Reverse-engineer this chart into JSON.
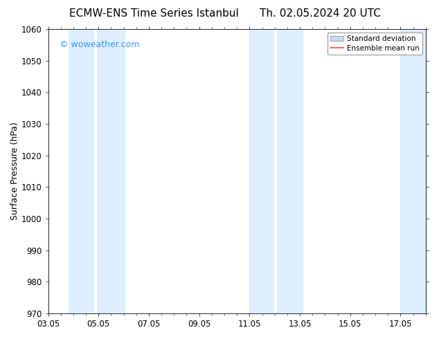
{
  "title_left": "ECMW-ENS Time Series Istanbul",
  "title_right": "Th. 02.05.2024 20 UTC",
  "ylabel": "Surface Pressure (hPa)",
  "ylim": [
    970,
    1060
  ],
  "yticks": [
    970,
    980,
    990,
    1000,
    1010,
    1020,
    1030,
    1040,
    1050,
    1060
  ],
  "xtick_labels": [
    "03.05",
    "05.05",
    "07.05",
    "09.05",
    "11.05",
    "13.05",
    "15.05",
    "17.05"
  ],
  "xtick_positions": [
    0,
    2,
    4,
    6,
    8,
    10,
    12,
    14
  ],
  "xlim": [
    0,
    15
  ],
  "bg_color": "#ffffff",
  "plot_bg_color": "#ffffff",
  "shaded_bands": [
    {
      "x_start": 0.8,
      "x_end": 1.8,
      "color": "#ddeeff"
    },
    {
      "x_start": 1.95,
      "x_end": 3.05,
      "color": "#ddeeff"
    },
    {
      "x_start": 8.0,
      "x_end": 8.95,
      "color": "#ddeeff"
    },
    {
      "x_start": 9.1,
      "x_end": 10.1,
      "color": "#ddeeff"
    },
    {
      "x_start": 14.0,
      "x_end": 15.1,
      "color": "#ddeeff"
    }
  ],
  "watermark_text": "© woweather.com",
  "watermark_color": "#3399ff",
  "stddev_color": "#c8daf5",
  "stddev_edge_color": "#aaaaaa",
  "mean_color": "#ff4444",
  "legend_stddev": "Standard deviation",
  "legend_mean": "Ensemble mean run",
  "title_fontsize": 11,
  "axis_fontsize": 9,
  "tick_fontsize": 8.5,
  "watermark_fontsize": 9
}
